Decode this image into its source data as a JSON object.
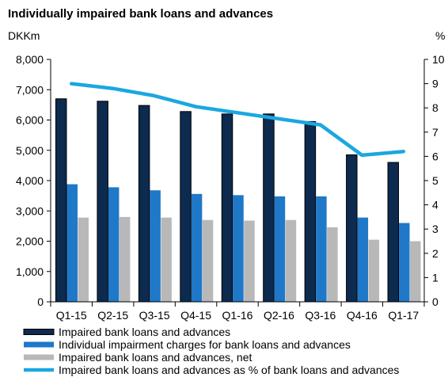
{
  "chart_data": {
    "type": "bar",
    "title": "Individually  impaired bank loans and advances",
    "ylabel_left": "DKKm",
    "ylabel_right": "%",
    "categories": [
      "Q1-15",
      "Q2-15",
      "Q3-15",
      "Q4-15",
      "Q1-16",
      "Q2-16",
      "Q3-16",
      "Q4-16",
      "Q1-17"
    ],
    "ylim_left": [
      0,
      8000
    ],
    "yticks_left": [
      "0",
      "1,000",
      "2,000",
      "3,000",
      "4,000",
      "5,000",
      "6,000",
      "7,000",
      "8,000"
    ],
    "ylim_right": [
      0,
      10
    ],
    "yticks_right": [
      "0",
      "1",
      "2",
      "3",
      "4",
      "5",
      "6",
      "7",
      "8",
      "9",
      "10"
    ],
    "series": [
      {
        "name": "Impaired bank loans and advances",
        "kind": "bar",
        "axis": "left",
        "color": "#0d2a4f",
        "values": [
          6700,
          6620,
          6480,
          6280,
          6200,
          6200,
          5950,
          4850,
          4600
        ]
      },
      {
        "name": "Individual impairment charges for bank loans and advances",
        "kind": "bar",
        "axis": "left",
        "color": "#1f78c8",
        "values": [
          3880,
          3780,
          3680,
          3560,
          3520,
          3480,
          3480,
          2780,
          2600
        ]
      },
      {
        "name": "Impaired bank loans and advances, net",
        "kind": "bar",
        "axis": "left",
        "color": "#b8b8b8",
        "values": [
          2780,
          2800,
          2780,
          2700,
          2680,
          2700,
          2460,
          2050,
          2000
        ]
      },
      {
        "name": "Impaired bank loans and advances as % of bank loans and advances",
        "kind": "line",
        "axis": "right",
        "color": "#1ba7e0",
        "values": [
          9.0,
          8.8,
          8.5,
          8.05,
          7.8,
          7.55,
          7.3,
          6.05,
          6.2
        ]
      }
    ],
    "grid": false,
    "legend_position": "bottom"
  }
}
